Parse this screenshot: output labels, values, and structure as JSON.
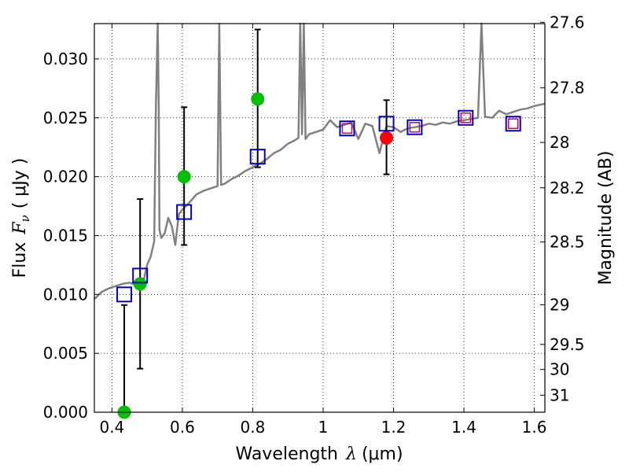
{
  "chart_data": {
    "type": "scatter",
    "xlabel_text": "Wavelength",
    "xlabel_symbol": "λ",
    "xlabel_unit": "(μm)",
    "ylabel_text": "Flux",
    "ylabel_symbol": "F",
    "ylabel_subscript": "ν",
    "ylabel_unit": "( μJy )",
    "y2label": "Magnitude (AB)",
    "xlim": [
      0.35,
      1.63
    ],
    "ylim": [
      0.0,
      0.033
    ],
    "grid": true,
    "x_ticks": [
      0.4,
      0.6,
      0.8,
      1.0,
      1.2,
      1.4,
      1.6
    ],
    "x_tick_labels": [
      "0.4",
      "0.6",
      "0.8",
      "1",
      "1.2",
      "1.4",
      "1.6"
    ],
    "y_ticks": [
      0.0,
      0.005,
      0.01,
      0.015,
      0.02,
      0.025,
      0.03
    ],
    "y_tick_labels": [
      "0.000",
      "0.005",
      "0.010",
      "0.015",
      "0.020",
      "0.025",
      "0.030"
    ],
    "y2_ticks": [
      27.6,
      27.8,
      28,
      28.2,
      28.5,
      29,
      29.5,
      30,
      31
    ],
    "y2_tick_labels": [
      "27.6",
      "27.8",
      "28",
      "28.2",
      "28.5",
      "29",
      "29.5",
      "30",
      "31"
    ],
    "colors": {
      "sed": "#808080",
      "green": "#00c000",
      "red": "#ff0000",
      "model_box": "#0000cc",
      "model_box_inner": "#e0004a",
      "errorbar": "#000000"
    },
    "series": [
      {
        "name": "SED model",
        "kind": "line",
        "x": [
          0.35,
          0.37,
          0.39,
          0.41,
          0.43,
          0.45,
          0.47,
          0.49,
          0.5,
          0.51,
          0.52,
          0.525,
          0.53,
          0.533,
          0.535,
          0.54,
          0.55,
          0.56,
          0.57,
          0.58,
          0.59,
          0.6,
          0.62,
          0.64,
          0.66,
          0.68,
          0.7,
          0.705,
          0.71,
          0.72,
          0.74,
          0.76,
          0.78,
          0.8,
          0.82,
          0.84,
          0.86,
          0.88,
          0.9,
          0.92,
          0.93,
          0.935,
          0.94,
          0.945,
          0.95,
          0.96,
          0.98,
          1.0,
          1.02,
          1.04,
          1.06,
          1.08,
          1.1,
          1.12,
          1.14,
          1.16,
          1.18,
          1.2,
          1.22,
          1.24,
          1.26,
          1.28,
          1.3,
          1.32,
          1.34,
          1.36,
          1.38,
          1.4,
          1.42,
          1.44,
          1.45,
          1.46,
          1.48,
          1.5,
          1.52,
          1.54,
          1.56,
          1.58,
          1.6,
          1.63
        ],
        "y": [
          0.0096,
          0.0102,
          0.0105,
          0.0107,
          0.0109,
          0.011,
          0.0108,
          0.0112,
          0.0125,
          0.0132,
          0.0145,
          0.026,
          0.034,
          0.026,
          0.0155,
          0.0148,
          0.0152,
          0.0165,
          0.0158,
          0.0142,
          0.0168,
          0.0172,
          0.0178,
          0.0185,
          0.0188,
          0.019,
          0.0192,
          0.034,
          0.0193,
          0.0194,
          0.0198,
          0.0201,
          0.0205,
          0.0208,
          0.0211,
          0.0215,
          0.022,
          0.0223,
          0.0228,
          0.0231,
          0.0233,
          0.034,
          0.0236,
          0.034,
          0.0232,
          0.0236,
          0.0238,
          0.024,
          0.0248,
          0.0242,
          0.0244,
          0.0246,
          0.0232,
          0.0245,
          0.0243,
          0.022,
          0.0243,
          0.0242,
          0.0238,
          0.0241,
          0.0242,
          0.0243,
          0.0245,
          0.0244,
          0.0246,
          0.0245,
          0.0247,
          0.0248,
          0.0249,
          0.025,
          0.033,
          0.0251,
          0.025,
          0.0256,
          0.0253,
          0.0255,
          0.0257,
          0.0258,
          0.026,
          0.0262
        ]
      },
      {
        "name": "Observed photometry (green)",
        "kind": "points",
        "x": [
          0.435,
          0.48,
          0.605,
          0.814
        ],
        "y": [
          0.0,
          0.0109,
          0.02,
          0.0266
        ],
        "yerr_low": [
          0.0,
          0.0037,
          0.0142,
          0.0208
        ],
        "yerr_high": [
          0.0091,
          0.0181,
          0.0259,
          0.0325
        ]
      },
      {
        "name": "Observed photometry (red)",
        "kind": "points",
        "x": [
          1.18
        ],
        "y": [
          0.0233
        ],
        "yerr_low": [
          0.0202
        ],
        "yerr_high": [
          0.0265
        ]
      },
      {
        "name": "Model photometry (open squares)",
        "kind": "boxes",
        "x": [
          0.435,
          0.48,
          0.605,
          0.814,
          1.068,
          1.18,
          1.26,
          1.405,
          1.54
        ],
        "y": [
          0.01,
          0.0116,
          0.017,
          0.0217,
          0.0241,
          0.0245,
          0.0242,
          0.025,
          0.0245
        ],
        "inner_red": [
          false,
          false,
          false,
          false,
          true,
          false,
          true,
          true,
          true
        ]
      }
    ]
  }
}
